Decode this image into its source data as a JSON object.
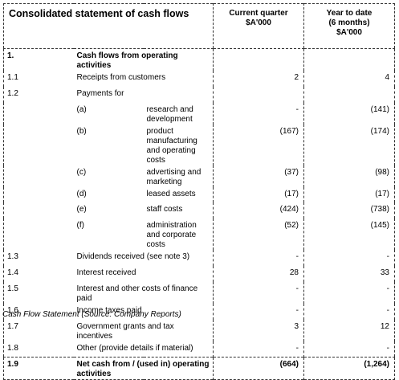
{
  "header": {
    "title": "Consolidated statement of cash flows",
    "col1": [
      "Current quarter",
      "$A'000"
    ],
    "col2": [
      "Year to date",
      "(6 months)",
      "$A'000"
    ]
  },
  "rows": [
    {
      "num": "1.",
      "label": "Cash flows from operating activities",
      "bold": true
    },
    {
      "num": "1.1",
      "label": "Receipts from customers",
      "cq": "2",
      "ytd": "4"
    },
    {
      "num": "1.2",
      "label": "Payments for"
    },
    {
      "sub": "(a)",
      "label": "research and development",
      "cq": "-",
      "ytd": "(141)"
    },
    {
      "sub": "(b)",
      "label": "product manufacturing and operating costs",
      "cq": "(167)",
      "ytd": "(174)"
    },
    {
      "sub": "(c)",
      "label": "advertising and marketing",
      "cq": "(37)",
      "ytd": "(98)"
    },
    {
      "sub": "(d)",
      "label": "leased assets",
      "cq": "(17)",
      "ytd": "(17)"
    },
    {
      "sub": "(e)",
      "label": "staff costs",
      "cq": "(424)",
      "ytd": "(738)"
    },
    {
      "sub": "(f)",
      "label": "administration and corporate costs",
      "cq": "(52)",
      "ytd": "(145)"
    },
    {
      "num": "1.3",
      "label": "Dividends received (see note 3)",
      "cq": "-",
      "ytd": "-"
    },
    {
      "num": "1.4",
      "label": "Interest received",
      "cq": "28",
      "ytd": "33"
    },
    {
      "num": "1.5",
      "label": "Interest and other costs of finance paid",
      "cq": "-",
      "ytd": "-"
    },
    {
      "num": "1.6",
      "label": "Income taxes paid",
      "cq": "-",
      "ytd": "-"
    },
    {
      "num": "1.7",
      "label": "Government grants and tax incentives",
      "cq": "3",
      "ytd": "12"
    },
    {
      "num": "1.8",
      "label": "Other (provide details if material)",
      "cq": "-",
      "ytd": "-"
    },
    {
      "num": "1.9",
      "label": "Net cash from / (used in) operating activities",
      "cq": "(664)",
      "ytd": "(1,264)",
      "bold": true
    }
  ],
  "caption": "Cash Flow Statement (Source: Company Reports)"
}
